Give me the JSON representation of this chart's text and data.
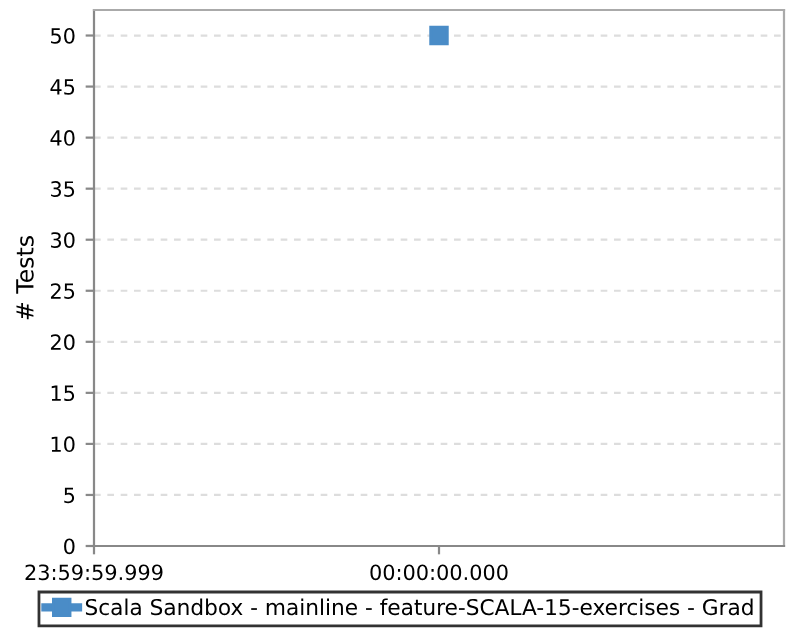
{
  "chart_data": {
    "type": "line",
    "ylabel": "# Tests",
    "categories": [
      "23:59:59.999",
      "00:00:00.000",
      null
    ],
    "series": [
      {
        "name": "Scala Sandbox - mainline - feature-SCALA-15-exercises - Grad",
        "color": "#4a8cc7",
        "values": [
          null,
          50,
          null
        ]
      }
    ],
    "ylim": [
      0,
      52.5
    ],
    "yticks": [
      0,
      5,
      10,
      15,
      20,
      25,
      30,
      35,
      40,
      45,
      50
    ],
    "grid": "y",
    "legend": "bottom",
    "marker": "square",
    "line_style": "solid"
  }
}
